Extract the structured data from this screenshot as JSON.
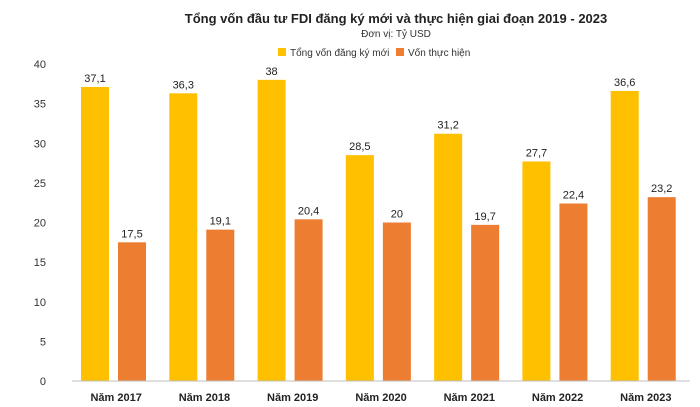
{
  "chart_data": {
    "type": "bar",
    "title": "Tổng vốn đầu tư FDI đăng ký mới và thực hiện giai đoạn 2019 - 2023",
    "subtitle": "Đơn vị: Tỷ USD",
    "categories": [
      "Năm 2017",
      "Năm 2018",
      "Năm 2019",
      "Năm 2020",
      "Năm 2021",
      "Năm 2022",
      "Năm 2023"
    ],
    "series": [
      {
        "name": "Tổng vốn đăng ký mới",
        "color": "#FFC000",
        "values": [
          37.1,
          36.3,
          38,
          28.5,
          31.2,
          27.7,
          36.6
        ],
        "labels": [
          "37,1",
          "36,3",
          "38",
          "28,5",
          "31,2",
          "27,7",
          "36,6"
        ]
      },
      {
        "name": "Vốn thực hiện",
        "color": "#ED7D31",
        "values": [
          17.5,
          19.1,
          20.4,
          20,
          19.7,
          22.4,
          23.2
        ],
        "labels": [
          "17,5",
          "19,1",
          "20,4",
          "20",
          "19,7",
          "22,4",
          "23,2"
        ]
      }
    ],
    "ylim": [
      0,
      40
    ],
    "yticks": [
      "0",
      "5",
      "10",
      "15",
      "20",
      "25",
      "30",
      "35",
      "40"
    ],
    "ytick_values": [
      0,
      5,
      10,
      15,
      20,
      25,
      30,
      35,
      40
    ],
    "xlabel": "",
    "ylabel": "",
    "legend_position": "top-center",
    "grid": false
  }
}
